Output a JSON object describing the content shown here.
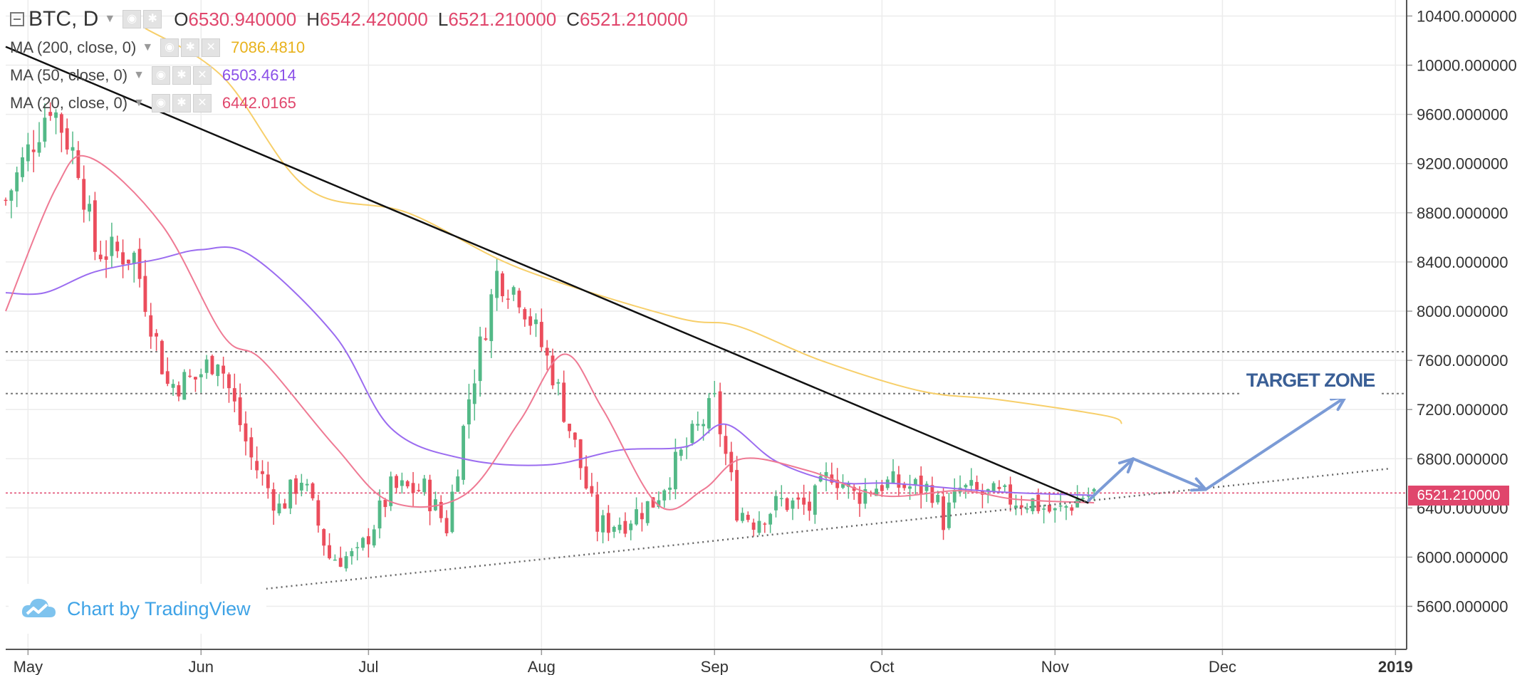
{
  "header": {
    "symbol": "BTC, D",
    "open_key": "O",
    "open": "6530.940000",
    "high_key": "H",
    "high": "6542.420000",
    "low_key": "L",
    "low": "6521.210000",
    "close_key": "C",
    "close": "6521.210000"
  },
  "indicators": [
    {
      "label": "MA (200, close, 0)",
      "value": "7086.4810",
      "color": "#f5c451"
    },
    {
      "label": "MA (50, close, 0)",
      "value": "6503.4614",
      "color": "#8a4fe8"
    },
    {
      "label": "MA (20, close, 0)",
      "value": "6442.0165",
      "color": "#e0466c"
    }
  ],
  "annotation": {
    "target_zone": "TARGET ZONE"
  },
  "watermark": {
    "text": "Chart by TradingView"
  },
  "last_price_label": "6521.210000",
  "colors": {
    "up": "#53b987",
    "down": "#eb4d5c",
    "ma200": "#f7cf6a",
    "ma50": "#9b6cf0",
    "ma20": "#ef7a94",
    "trend": "#111111",
    "projection": "#7b9bd6",
    "price_line": "#e0466c"
  },
  "chart_data": {
    "type": "candlestick",
    "symbol": "BTC",
    "interval": "D",
    "x_ticks": [
      "May",
      "Jun",
      "Jul",
      "Aug",
      "Sep",
      "Oct",
      "Nov",
      "Dec",
      "2019"
    ],
    "y_ticks": [
      "5600.000000",
      "6000.000000",
      "6400.000000",
      "6800.000000",
      "7200.000000",
      "7600.000000",
      "8000.000000",
      "8400.000000",
      "8800.000000",
      "9200.000000",
      "9600.000000",
      "10000.000000",
      "10400.000000"
    ],
    "ylim": [
      5250,
      10530
    ],
    "x_range": [
      "2018-04-27",
      "2019-01-03"
    ],
    "last_price": 6521.21,
    "resistance_levels": [
      7670,
      7330
    ],
    "anchors": [
      [
        "2018-04-27",
        8900
      ],
      [
        "2018-05-05",
        9700
      ],
      [
        "2018-05-10",
        9200
      ],
      [
        "2018-05-13",
        8500
      ],
      [
        "2018-05-20",
        8450
      ],
      [
        "2018-05-26",
        7400
      ],
      [
        "2018-05-31",
        7450
      ],
      [
        "2018-06-04",
        7650
      ],
      [
        "2018-06-10",
        6800
      ],
      [
        "2018-06-15",
        6400
      ],
      [
        "2018-06-19",
        6650
      ],
      [
        "2018-06-24",
        6000
      ],
      [
        "2018-06-29",
        6000
      ],
      [
        "2018-07-05",
        6550
      ],
      [
        "2018-07-11",
        6550
      ],
      [
        "2018-07-15",
        6250
      ],
      [
        "2018-07-19",
        7300
      ],
      [
        "2018-07-24",
        8300
      ],
      [
        "2018-07-28",
        8150
      ],
      [
        "2018-08-03",
        7500
      ],
      [
        "2018-08-07",
        6900
      ],
      [
        "2018-08-11",
        6250
      ],
      [
        "2018-08-16",
        6300
      ],
      [
        "2018-08-21",
        6450
      ],
      [
        "2018-08-27",
        6900
      ],
      [
        "2018-09-01",
        7250
      ],
      [
        "2018-09-05",
        6400
      ],
      [
        "2018-09-08",
        6300
      ],
      [
        "2018-09-13",
        6450
      ],
      [
        "2018-09-18",
        6400
      ],
      [
        "2018-09-22",
        6700
      ],
      [
        "2018-09-26",
        6500
      ],
      [
        "2018-10-01",
        6600
      ],
      [
        "2018-10-10",
        6550
      ],
      [
        "2018-10-12",
        6300
      ],
      [
        "2018-10-15",
        6550
      ],
      [
        "2018-10-20",
        6500
      ],
      [
        "2018-10-28",
        6450
      ],
      [
        "2018-11-01",
        6350
      ],
      [
        "2018-11-06",
        6500
      ],
      [
        "2018-11-08",
        6521
      ]
    ],
    "ma200": [
      [
        "2018-05-22",
        10300
      ],
      [
        "2018-06-05",
        9900
      ],
      [
        "2018-06-20",
        9000
      ],
      [
        "2018-07-08",
        8800
      ],
      [
        "2018-07-28",
        8350
      ],
      [
        "2018-08-25",
        7950
      ],
      [
        "2018-09-05",
        7880
      ],
      [
        "2018-09-20",
        7600
      ],
      [
        "2018-10-08",
        7350
      ],
      [
        "2018-10-22",
        7280
      ],
      [
        "2018-11-10",
        7150
      ],
      [
        "2018-11-13",
        7086
      ]
    ],
    "ma50": [
      [
        "2018-04-27",
        8150
      ],
      [
        "2018-05-04",
        8150
      ],
      [
        "2018-05-13",
        8320
      ],
      [
        "2018-05-24",
        8420
      ],
      [
        "2018-06-01",
        8500
      ],
      [
        "2018-06-10",
        8450
      ],
      [
        "2018-06-25",
        7800
      ],
      [
        "2018-07-05",
        7050
      ],
      [
        "2018-07-18",
        6800
      ],
      [
        "2018-08-02",
        6750
      ],
      [
        "2018-08-15",
        6870
      ],
      [
        "2018-08-27",
        6900
      ],
      [
        "2018-09-03",
        7080
      ],
      [
        "2018-09-12",
        6780
      ],
      [
        "2018-09-23",
        6610
      ],
      [
        "2018-10-03",
        6600
      ],
      [
        "2018-10-22",
        6530
      ],
      [
        "2018-11-08",
        6503
      ]
    ],
    "ma20": [
      [
        "2018-04-27",
        8000
      ],
      [
        "2018-05-06",
        9000
      ],
      [
        "2018-05-12",
        9250
      ],
      [
        "2018-05-25",
        8700
      ],
      [
        "2018-06-05",
        7800
      ],
      [
        "2018-06-12",
        7600
      ],
      [
        "2018-06-25",
        6900
      ],
      [
        "2018-07-05",
        6450
      ],
      [
        "2018-07-18",
        6500
      ],
      [
        "2018-07-28",
        7100
      ],
      [
        "2018-08-05",
        7650
      ],
      [
        "2018-08-12",
        7200
      ],
      [
        "2018-08-22",
        6420
      ],
      [
        "2018-08-30",
        6550
      ],
      [
        "2018-09-06",
        6800
      ],
      [
        "2018-09-18",
        6700
      ],
      [
        "2018-10-01",
        6500
      ],
      [
        "2018-10-15",
        6540
      ],
      [
        "2018-10-25",
        6470
      ],
      [
        "2018-11-08",
        6442
      ]
    ],
    "trendlines": [
      {
        "style": "solid",
        "points": [
          [
            "2018-04-27",
            10150
          ],
          [
            "2018-11-07",
            6440
          ]
        ]
      },
      {
        "style": "dotted",
        "points": [
          [
            "2018-06-10",
            5730
          ],
          [
            "2018-12-31",
            6720
          ]
        ]
      }
    ],
    "projection": [
      [
        "2018-11-07",
        6460
      ],
      [
        "2018-11-15",
        6800
      ],
      [
        "2018-11-28",
        6550
      ],
      [
        "2018-12-23",
        7300
      ]
    ]
  }
}
